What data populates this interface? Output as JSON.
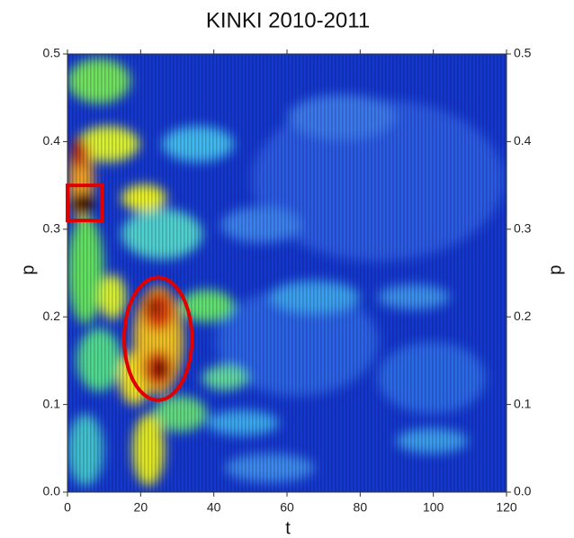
{
  "chart_data": {
    "type": "heatmap",
    "title": "KINKI 2010-2011",
    "x_label": "t",
    "y_label": "p",
    "xlim": [
      0,
      120
    ],
    "ylim": [
      0,
      0.5
    ],
    "xticks": [
      0,
      20,
      40,
      60,
      80,
      100,
      120
    ],
    "yticks": [
      {
        "value": 0,
        "label": "0.0"
      },
      0.1,
      0.2,
      0.3,
      0.4,
      0.5
    ],
    "annotations": [
      {
        "shape": "rect",
        "t": [
          0,
          9.5
        ],
        "p": [
          0.31,
          0.35
        ],
        "color": "#e00000"
      },
      {
        "shape": "ellipse",
        "t": [
          15.5,
          34
        ],
        "p": [
          0.105,
          0.245
        ],
        "color": "#e00000"
      }
    ]
  }
}
